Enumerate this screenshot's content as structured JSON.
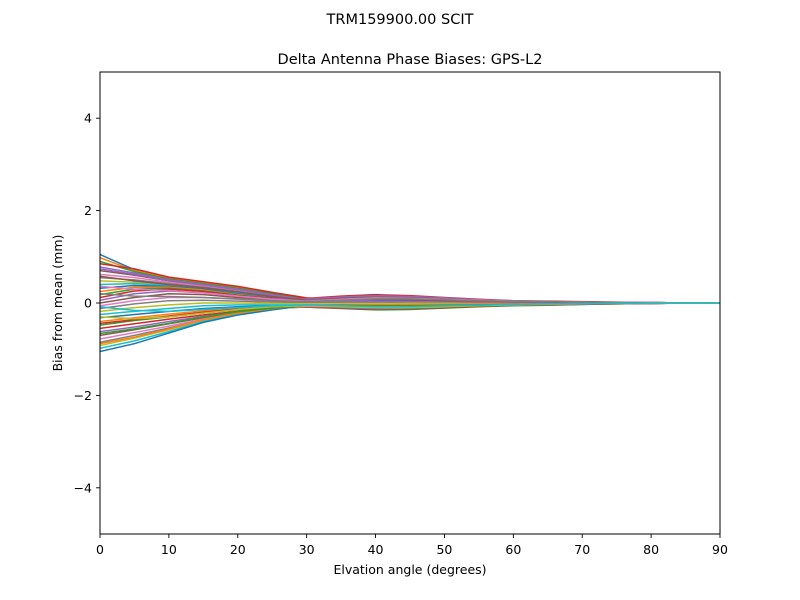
{
  "figure": {
    "suptitle": "TRM159900.00    SCIT"
  },
  "chart_data": {
    "type": "line",
    "title": "Delta Antenna Phase Biases: GPS-L2",
    "xlabel": "Elvation angle (degrees)",
    "ylabel": "Bias from mean (mm)",
    "xlim": [
      0,
      90
    ],
    "ylim": [
      -5,
      5
    ],
    "xticks": [
      0,
      10,
      20,
      30,
      40,
      50,
      60,
      70,
      80,
      90
    ],
    "xtick_labels": [
      "0",
      "10",
      "20",
      "30",
      "40",
      "50",
      "60",
      "70",
      "80",
      "90"
    ],
    "yticks": [
      -4,
      -2,
      0,
      2,
      4
    ],
    "ytick_labels": [
      "−4",
      "−2",
      "0",
      "2",
      "4"
    ],
    "grid": false,
    "legend": "none",
    "x": [
      0,
      5,
      10,
      15,
      20,
      25,
      30,
      35,
      40,
      45,
      50,
      55,
      60,
      65,
      70,
      75,
      80,
      85,
      90
    ],
    "colors": [
      "#1f77b4",
      "#ff7f0e",
      "#2ca02c",
      "#d62728",
      "#9467bd",
      "#8c564b",
      "#e377c2",
      "#7f7f7f",
      "#bcbd22",
      "#17becf"
    ],
    "series": [
      {
        "values": [
          1.05,
          0.72,
          0.55,
          0.45,
          0.35,
          0.22,
          0.1,
          0.06,
          0.04,
          0.03,
          0.03,
          0.02,
          0.02,
          0.01,
          0.01,
          0.01,
          0.0,
          0.0,
          0.0
        ]
      },
      {
        "values": [
          0.98,
          0.7,
          0.54,
          0.44,
          0.34,
          0.21,
          0.09,
          0.05,
          0.03,
          0.02,
          0.02,
          0.02,
          0.01,
          0.01,
          0.01,
          0.0,
          0.0,
          0.0,
          0.0
        ]
      },
      {
        "values": [
          0.9,
          0.68,
          0.52,
          0.42,
          0.32,
          0.2,
          0.08,
          0.04,
          0.03,
          0.02,
          0.02,
          0.01,
          0.01,
          0.01,
          0.0,
          0.0,
          0.0,
          0.0,
          0.0
        ]
      },
      {
        "values": [
          0.85,
          0.74,
          0.56,
          0.46,
          0.36,
          0.23,
          0.11,
          0.07,
          0.05,
          0.04,
          0.03,
          0.02,
          0.02,
          0.01,
          0.01,
          0.01,
          0.0,
          0.0,
          0.0
        ]
      },
      {
        "values": [
          0.78,
          0.65,
          0.5,
          0.4,
          0.3,
          0.18,
          0.07,
          0.03,
          0.02,
          0.02,
          0.01,
          0.01,
          0.01,
          0.0,
          0.0,
          0.0,
          0.0,
          0.0,
          0.0
        ]
      },
      {
        "values": [
          0.7,
          0.6,
          0.48,
          0.38,
          0.28,
          0.16,
          0.06,
          0.04,
          0.03,
          0.03,
          0.02,
          0.02,
          0.01,
          0.01,
          0.01,
          0.0,
          0.0,
          0.0,
          0.0
        ]
      },
      {
        "values": [
          0.62,
          0.55,
          0.45,
          0.36,
          0.26,
          0.15,
          0.05,
          0.03,
          0.02,
          0.02,
          0.02,
          0.01,
          0.01,
          0.01,
          0.0,
          0.0,
          0.0,
          0.0,
          0.0
        ]
      },
      {
        "values": [
          0.55,
          0.5,
          0.42,
          0.34,
          0.25,
          0.14,
          0.05,
          0.02,
          0.02,
          0.01,
          0.01,
          0.01,
          0.01,
          0.0,
          0.0,
          0.0,
          0.0,
          0.0,
          0.0
        ]
      },
      {
        "values": [
          0.48,
          0.45,
          0.4,
          0.32,
          0.24,
          0.13,
          0.04,
          0.03,
          0.03,
          0.02,
          0.02,
          0.02,
          0.01,
          0.01,
          0.01,
          0.0,
          0.0,
          0.0,
          0.0
        ]
      },
      {
        "values": [
          0.4,
          0.42,
          0.38,
          0.31,
          0.22,
          0.12,
          0.04,
          0.04,
          0.04,
          0.03,
          0.02,
          0.02,
          0.01,
          0.01,
          0.01,
          0.01,
          0.0,
          0.0,
          0.0
        ]
      },
      {
        "values": [
          0.32,
          0.38,
          0.36,
          0.3,
          0.2,
          0.11,
          0.05,
          0.06,
          0.06,
          0.05,
          0.04,
          0.03,
          0.02,
          0.02,
          0.01,
          0.01,
          0.0,
          0.0,
          0.0
        ]
      },
      {
        "values": [
          0.25,
          0.34,
          0.34,
          0.28,
          0.18,
          0.1,
          0.06,
          0.09,
          0.1,
          0.08,
          0.06,
          0.04,
          0.03,
          0.02,
          0.02,
          0.01,
          0.01,
          0.0,
          0.0
        ]
      },
      {
        "values": [
          0.18,
          0.3,
          0.32,
          0.26,
          0.17,
          0.1,
          0.08,
          0.12,
          0.14,
          0.12,
          0.09,
          0.06,
          0.04,
          0.03,
          0.02,
          0.01,
          0.01,
          0.0,
          0.0
        ]
      },
      {
        "values": [
          0.12,
          0.26,
          0.3,
          0.25,
          0.16,
          0.1,
          0.1,
          0.15,
          0.18,
          0.16,
          0.12,
          0.08,
          0.05,
          0.04,
          0.03,
          0.02,
          0.01,
          0.0,
          0.0
        ]
      },
      {
        "values": [
          0.06,
          0.2,
          0.26,
          0.22,
          0.15,
          0.09,
          0.09,
          0.13,
          0.16,
          0.14,
          0.11,
          0.07,
          0.05,
          0.03,
          0.02,
          0.01,
          0.01,
          0.0,
          0.0
        ]
      },
      {
        "values": [
          0.0,
          0.12,
          0.2,
          0.18,
          0.12,
          0.07,
          0.06,
          0.1,
          0.12,
          0.11,
          0.09,
          0.06,
          0.04,
          0.03,
          0.02,
          0.01,
          0.01,
          0.0,
          0.0
        ]
      },
      {
        "values": [
          -0.06,
          0.05,
          0.12,
          0.12,
          0.08,
          0.04,
          0.03,
          0.06,
          0.08,
          0.08,
          0.06,
          0.05,
          0.03,
          0.02,
          0.02,
          0.01,
          0.0,
          0.0,
          0.0
        ]
      },
      {
        "values": [
          -0.12,
          -0.02,
          0.05,
          0.06,
          0.04,
          0.02,
          0.01,
          0.02,
          0.03,
          0.03,
          0.03,
          0.02,
          0.02,
          0.01,
          0.01,
          0.0,
          0.0,
          0.0,
          0.0
        ]
      },
      {
        "values": [
          -0.18,
          -0.1,
          -0.04,
          0.0,
          0.0,
          -0.01,
          -0.02,
          -0.02,
          -0.02,
          -0.02,
          -0.01,
          -0.01,
          -0.01,
          0.0,
          0.0,
          0.0,
          0.0,
          0.0,
          0.0
        ]
      },
      {
        "values": [
          -0.25,
          -0.18,
          -0.12,
          -0.06,
          -0.04,
          -0.04,
          -0.05,
          -0.06,
          -0.07,
          -0.06,
          -0.05,
          -0.03,
          -0.02,
          -0.02,
          -0.01,
          -0.01,
          0.0,
          0.0,
          0.0
        ]
      },
      {
        "values": [
          -0.32,
          -0.25,
          -0.18,
          -0.12,
          -0.08,
          -0.06,
          -0.07,
          -0.09,
          -0.11,
          -0.1,
          -0.08,
          -0.05,
          -0.04,
          -0.03,
          -0.02,
          -0.01,
          -0.01,
          0.0,
          0.0
        ]
      },
      {
        "values": [
          -0.4,
          -0.32,
          -0.24,
          -0.17,
          -0.12,
          -0.08,
          -0.08,
          -0.11,
          -0.14,
          -0.13,
          -0.1,
          -0.07,
          -0.05,
          -0.04,
          -0.03,
          -0.02,
          -0.01,
          0.0,
          0.0
        ]
      },
      {
        "values": [
          -0.48,
          -0.38,
          -0.3,
          -0.22,
          -0.15,
          -0.1,
          -0.09,
          -0.12,
          -0.15,
          -0.14,
          -0.11,
          -0.08,
          -0.06,
          -0.05,
          -0.03,
          -0.02,
          -0.01,
          0.0,
          0.0
        ]
      },
      {
        "values": [
          -0.55,
          -0.45,
          -0.35,
          -0.26,
          -0.18,
          -0.11,
          -0.09,
          -0.11,
          -0.13,
          -0.12,
          -0.1,
          -0.07,
          -0.05,
          -0.04,
          -0.03,
          -0.02,
          -0.01,
          0.0,
          0.0
        ]
      },
      {
        "values": [
          -0.62,
          -0.52,
          -0.4,
          -0.29,
          -0.2,
          -0.12,
          -0.08,
          -0.1,
          -0.12,
          -0.11,
          -0.09,
          -0.06,
          -0.05,
          -0.03,
          -0.02,
          -0.01,
          -0.01,
          0.0,
          0.0
        ]
      },
      {
        "values": [
          -0.7,
          -0.58,
          -0.45,
          -0.32,
          -0.21,
          -0.12,
          -0.07,
          -0.08,
          -0.1,
          -0.09,
          -0.08,
          -0.06,
          -0.04,
          -0.03,
          -0.02,
          -0.01,
          0.0,
          0.0,
          0.0
        ]
      },
      {
        "values": [
          -0.78,
          -0.64,
          -0.5,
          -0.35,
          -0.22,
          -0.13,
          -0.07,
          -0.07,
          -0.08,
          -0.08,
          -0.07,
          -0.05,
          -0.04,
          -0.03,
          -0.02,
          -0.01,
          0.0,
          0.0,
          0.0
        ]
      },
      {
        "values": [
          -0.85,
          -0.7,
          -0.54,
          -0.37,
          -0.23,
          -0.13,
          -0.06,
          -0.06,
          -0.07,
          -0.07,
          -0.06,
          -0.05,
          -0.03,
          -0.02,
          -0.02,
          -0.01,
          0.0,
          0.0,
          0.0
        ]
      },
      {
        "values": [
          -0.92,
          -0.76,
          -0.58,
          -0.38,
          -0.24,
          -0.14,
          -0.06,
          -0.05,
          -0.06,
          -0.06,
          -0.05,
          -0.04,
          -0.03,
          -0.02,
          -0.01,
          -0.01,
          0.0,
          0.0,
          0.0
        ]
      },
      {
        "values": [
          -0.98,
          -0.82,
          -0.62,
          -0.4,
          -0.25,
          -0.14,
          -0.05,
          -0.04,
          -0.05,
          -0.05,
          -0.05,
          -0.04,
          -0.03,
          -0.02,
          -0.01,
          -0.01,
          0.0,
          0.0,
          0.0
        ]
      },
      {
        "values": [
          -1.05,
          -0.88,
          -0.65,
          -0.42,
          -0.26,
          -0.15,
          -0.05,
          -0.04,
          -0.04,
          -0.04,
          -0.04,
          -0.03,
          -0.02,
          -0.02,
          -0.01,
          -0.01,
          0.0,
          0.0,
          0.0
        ]
      },
      {
        "values": [
          -0.88,
          -0.74,
          -0.56,
          -0.36,
          -0.22,
          -0.12,
          -0.04,
          -0.03,
          -0.03,
          -0.03,
          -0.03,
          -0.02,
          -0.02,
          -0.01,
          -0.01,
          0.0,
          0.0,
          0.0,
          0.0
        ]
      },
      {
        "values": [
          -0.66,
          -0.56,
          -0.44,
          -0.3,
          -0.19,
          -0.11,
          -0.05,
          -0.05,
          -0.06,
          -0.06,
          -0.05,
          -0.04,
          -0.03,
          -0.02,
          -0.01,
          -0.01,
          0.0,
          0.0,
          0.0
        ]
      },
      {
        "values": [
          -0.44,
          -0.36,
          -0.28,
          -0.2,
          -0.13,
          -0.08,
          -0.05,
          -0.07,
          -0.09,
          -0.09,
          -0.07,
          -0.05,
          -0.04,
          -0.03,
          -0.02,
          -0.01,
          0.0,
          0.0,
          0.0
        ]
      },
      {
        "values": [
          0.74,
          0.62,
          0.49,
          0.39,
          0.29,
          0.17,
          0.07,
          0.05,
          0.04,
          0.03,
          0.03,
          0.02,
          0.02,
          0.01,
          0.01,
          0.0,
          0.0,
          0.0,
          0.0
        ]
      },
      {
        "values": [
          0.58,
          0.48,
          0.4,
          0.33,
          0.24,
          0.14,
          0.06,
          0.07,
          0.08,
          0.07,
          0.05,
          0.04,
          0.03,
          0.02,
          0.01,
          0.01,
          0.0,
          0.0,
          0.0
        ]
      },
      {
        "values": [
          0.36,
          0.3,
          0.27,
          0.22,
          0.15,
          0.08,
          0.04,
          0.08,
          0.11,
          0.1,
          0.08,
          0.06,
          0.04,
          0.03,
          0.02,
          0.01,
          0.01,
          0.0,
          0.0
        ]
      },
      {
        "values": [
          0.2,
          0.15,
          0.14,
          0.12,
          0.09,
          0.05,
          0.03,
          0.06,
          0.09,
          0.09,
          0.07,
          0.05,
          0.04,
          0.03,
          0.02,
          0.01,
          0.0,
          0.0,
          0.0
        ]
      },
      {
        "values": [
          -0.3,
          -0.34,
          -0.3,
          -0.22,
          -0.14,
          -0.08,
          -0.06,
          -0.08,
          -0.1,
          -0.1,
          -0.08,
          -0.06,
          -0.04,
          -0.03,
          -0.02,
          -0.01,
          0.0,
          0.0,
          0.0
        ]
      },
      {
        "values": [
          -0.08,
          -0.16,
          -0.18,
          -0.14,
          -0.1,
          -0.06,
          -0.04,
          -0.06,
          -0.08,
          -0.08,
          -0.06,
          -0.05,
          -0.03,
          -0.02,
          -0.02,
          -0.01,
          0.0,
          0.0,
          0.0
        ]
      }
    ]
  }
}
